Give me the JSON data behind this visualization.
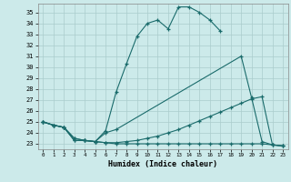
{
  "title": "",
  "xlabel": "Humidex (Indice chaleur)",
  "bg_color": "#cceaea",
  "grid_color": "#aacccc",
  "line_color": "#1a6b6b",
  "xlim": [
    -0.5,
    23.5
  ],
  "ylim": [
    22.5,
    35.8
  ],
  "yticks": [
    23,
    24,
    25,
    26,
    27,
    28,
    29,
    30,
    31,
    32,
    33,
    34,
    35
  ],
  "xticks": [
    0,
    1,
    2,
    3,
    4,
    5,
    6,
    7,
    8,
    9,
    10,
    11,
    12,
    13,
    14,
    15,
    16,
    17,
    18,
    19,
    20,
    21,
    22,
    23
  ],
  "curve1_x": [
    0,
    1,
    2,
    3,
    4,
    5,
    6,
    7,
    8,
    9,
    10,
    11,
    12,
    13,
    14,
    15,
    16,
    17
  ],
  "curve1_y": [
    25.0,
    24.7,
    24.5,
    23.3,
    23.3,
    23.2,
    24.2,
    27.7,
    30.3,
    32.8,
    34.0,
    34.3,
    33.5,
    35.5,
    35.5,
    35.0,
    34.3,
    33.3
  ],
  "curve2_x": [
    0,
    1,
    2,
    3,
    4,
    5,
    6,
    7,
    19,
    20,
    21,
    22,
    23
  ],
  "curve2_y": [
    25.0,
    24.7,
    24.5,
    23.3,
    23.3,
    23.2,
    24.0,
    24.3,
    31.0,
    27.2,
    23.2,
    22.9,
    22.8
  ],
  "curve3_x": [
    0,
    1,
    2,
    3,
    4,
    5,
    6,
    7,
    8,
    9,
    10,
    11,
    12,
    13,
    14,
    15,
    16,
    17,
    18,
    19,
    20,
    21,
    22,
    23
  ],
  "curve3_y": [
    25.0,
    24.7,
    24.5,
    23.5,
    23.3,
    23.2,
    23.1,
    23.1,
    23.2,
    23.3,
    23.5,
    23.7,
    24.0,
    24.3,
    24.7,
    25.1,
    25.5,
    25.9,
    26.3,
    26.7,
    27.1,
    27.3,
    22.9,
    22.8
  ],
  "curve4_x": [
    0,
    1,
    2,
    3,
    4,
    5,
    6,
    7,
    8,
    9,
    10,
    11,
    12,
    13,
    14,
    15,
    16,
    17,
    18,
    19,
    20,
    21,
    22,
    23
  ],
  "curve4_y": [
    25.0,
    24.7,
    24.5,
    23.5,
    23.3,
    23.2,
    23.1,
    23.0,
    23.0,
    23.0,
    23.0,
    23.0,
    23.0,
    23.0,
    23.0,
    23.0,
    23.0,
    23.0,
    23.0,
    23.0,
    23.0,
    23.0,
    22.9,
    22.8
  ]
}
